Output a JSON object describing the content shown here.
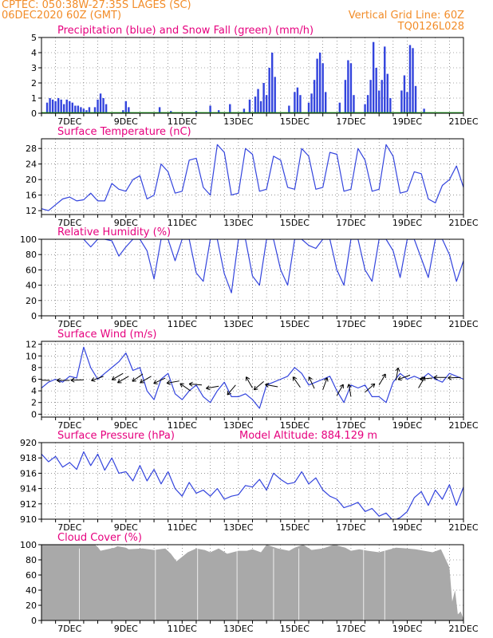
{
  "colors": {
    "header": "#f28c28",
    "title": "#e6007e",
    "series_blue": "#3344dd",
    "series_green": "#22aa22",
    "wind_arrow": "#000000",
    "cloud_fill": "#a9a9a9",
    "axis": "#000000"
  },
  "header": {
    "line1": "CPTEC:   050:38W-27:35S   LAGES (SC)",
    "line2": "06DEC2020 60Z (GMT)",
    "grid_info": "Vertical Grid Line: 60Z",
    "code": "TQ0126L028"
  },
  "x_ticks": [
    "7DEC",
    "9DEC",
    "11DEC",
    "13DEC",
    "15DEC",
    "17DEC",
    "19DEC",
    "21DEC"
  ],
  "chart_data": [
    {
      "id": "precip",
      "type": "bar",
      "title": "Precipitation (blue) and Snow Fall (green) (mm/h)",
      "ylim": [
        0,
        5
      ],
      "yticks": [
        0,
        1,
        2,
        3,
        4,
        5
      ],
      "x_range_days": [
        6,
        21
      ],
      "grid": "dotted",
      "series": [
        {
          "name": "Precipitation",
          "color": "#3344dd",
          "points": [
            [
              6.2,
              0.7
            ],
            [
              6.3,
              1.0
            ],
            [
              6.4,
              0.9
            ],
            [
              6.5,
              0.8
            ],
            [
              6.6,
              1.0
            ],
            [
              6.7,
              0.9
            ],
            [
              6.8,
              0.6
            ],
            [
              6.9,
              0.9
            ],
            [
              7.0,
              0.8
            ],
            [
              7.1,
              0.7
            ],
            [
              7.2,
              0.5
            ],
            [
              7.3,
              0.5
            ],
            [
              7.4,
              0.4
            ],
            [
              7.5,
              0.3
            ],
            [
              7.6,
              0.2
            ],
            [
              7.7,
              0.4
            ],
            [
              7.9,
              0.4
            ],
            [
              8.0,
              0.9
            ],
            [
              8.1,
              1.3
            ],
            [
              8.2,
              1.0
            ],
            [
              8.3,
              0.6
            ],
            [
              8.9,
              0.2
            ],
            [
              9.0,
              0.8
            ],
            [
              9.1,
              0.4
            ],
            [
              10.2,
              0.4
            ],
            [
              10.6,
              0.15
            ],
            [
              11.5,
              0.15
            ],
            [
              12.0,
              0.5
            ],
            [
              12.3,
              0.2
            ],
            [
              12.7,
              0.6
            ],
            [
              13.2,
              0.3
            ],
            [
              13.4,
              0.9
            ],
            [
              13.6,
              1.1
            ],
            [
              13.7,
              1.6
            ],
            [
              13.8,
              0.8
            ],
            [
              13.9,
              2.0
            ],
            [
              14.0,
              1.2
            ],
            [
              14.1,
              3.0
            ],
            [
              14.2,
              4.0
            ],
            [
              14.3,
              2.4
            ],
            [
              14.8,
              0.5
            ],
            [
              15.0,
              1.4
            ],
            [
              15.1,
              1.7
            ],
            [
              15.2,
              1.2
            ],
            [
              15.5,
              0.7
            ],
            [
              15.6,
              1.3
            ],
            [
              15.7,
              2.2
            ],
            [
              15.8,
              3.6
            ],
            [
              15.9,
              4.0
            ],
            [
              16.0,
              3.3
            ],
            [
              16.1,
              1.4
            ],
            [
              16.6,
              0.7
            ],
            [
              16.8,
              2.2
            ],
            [
              16.9,
              3.5
            ],
            [
              17.0,
              3.3
            ],
            [
              17.1,
              1.2
            ],
            [
              17.5,
              0.6
            ],
            [
              17.6,
              1.2
            ],
            [
              17.7,
              2.2
            ],
            [
              17.8,
              4.7
            ],
            [
              17.9,
              3.0
            ],
            [
              18.0,
              1.5
            ],
            [
              18.1,
              2.2
            ],
            [
              18.2,
              4.4
            ],
            [
              18.3,
              2.6
            ],
            [
              18.4,
              1.0
            ],
            [
              18.8,
              1.5
            ],
            [
              18.9,
              2.5
            ],
            [
              19.0,
              1.4
            ],
            [
              19.1,
              4.5
            ],
            [
              19.2,
              4.3
            ],
            [
              19.3,
              1.8
            ],
            [
              19.6,
              0.3
            ]
          ]
        },
        {
          "name": "Snow Fall",
          "color": "#22aa22",
          "points": []
        }
      ]
    },
    {
      "id": "temperature",
      "type": "line",
      "title": "Surface Temperature (nC)",
      "ylim": [
        11,
        30.5
      ],
      "yticks": [
        12,
        16,
        20,
        24,
        28
      ],
      "x": [
        6.0,
        6.25,
        6.5,
        6.75,
        7.0,
        7.25,
        7.5,
        7.75,
        8.0,
        8.25,
        8.5,
        8.75,
        9.0,
        9.25,
        9.5,
        9.75,
        10.0,
        10.25,
        10.5,
        10.75,
        11.0,
        11.25,
        11.5,
        11.75,
        12.0,
        12.25,
        12.5,
        12.75,
        13.0,
        13.25,
        13.5,
        13.75,
        14.0,
        14.25,
        14.5,
        14.75,
        15.0,
        15.25,
        15.5,
        15.75,
        16.0,
        16.25,
        16.5,
        16.75,
        17.0,
        17.25,
        17.5,
        17.75,
        18.0,
        18.25,
        18.5,
        18.75,
        19.0,
        19.25,
        19.5,
        19.75,
        20.0,
        20.25,
        20.5,
        20.75,
        21.0
      ],
      "values": [
        12.5,
        12,
        13.5,
        15,
        15.5,
        14.5,
        14.8,
        16.5,
        14.5,
        14.5,
        19,
        17.5,
        17,
        20,
        21,
        15,
        16,
        24,
        22,
        16.5,
        17,
        25,
        25.5,
        18,
        16,
        29,
        27,
        16,
        16.5,
        28,
        26.5,
        17,
        17.5,
        26,
        25,
        18,
        17.5,
        28,
        26,
        17.5,
        18,
        27,
        26.5,
        17,
        17.5,
        28,
        25,
        17,
        17.5,
        29,
        26,
        16.5,
        17,
        22,
        21.5,
        15,
        14,
        18.5,
        20,
        23.5,
        18
      ],
      "series_name": "",
      "color": "#3344dd",
      "grid": "dotted"
    },
    {
      "id": "humidity",
      "type": "line",
      "title": "Relative Humidity (%)",
      "ylim": [
        0,
        100
      ],
      "yticks": [
        0,
        20,
        40,
        60,
        80,
        100
      ],
      "x": [
        7.5,
        7.75,
        8.0,
        8.25,
        8.5,
        8.75,
        9.0,
        9.25,
        9.5,
        9.75,
        10.0,
        10.25,
        10.5,
        10.75,
        11.0,
        11.25,
        11.5,
        11.75,
        12.0,
        12.25,
        12.5,
        12.75,
        13.0,
        13.25,
        13.5,
        13.75,
        14.0,
        14.25,
        14.5,
        14.75,
        15.0,
        15.25,
        15.5,
        15.75,
        16.0,
        16.25,
        16.5,
        16.75,
        17.0,
        17.25,
        17.5,
        17.75,
        18.0,
        18.25,
        18.5,
        18.75,
        19.0,
        19.25,
        19.5,
        19.75,
        20.0,
        20.25,
        20.5,
        20.75,
        21.0
      ],
      "values": [
        100,
        90,
        100,
        100,
        98,
        78,
        90,
        100,
        100,
        85,
        48,
        100,
        100,
        72,
        100,
        100,
        56,
        45,
        100,
        100,
        55,
        30,
        100,
        100,
        52,
        40,
        100,
        100,
        60,
        40,
        100,
        100,
        92,
        88,
        100,
        100,
        60,
        40,
        100,
        100,
        60,
        45,
        100,
        100,
        85,
        50,
        100,
        100,
        75,
        50,
        100,
        100,
        80,
        45,
        72
      ],
      "series_name": "",
      "color": "#3344dd",
      "grid": "dotted"
    },
    {
      "id": "wind",
      "type": "line",
      "title": "Surface Wind (m/s)",
      "ylim": [
        -0.5,
        12.5
      ],
      "yticks": [
        0,
        2,
        4,
        6,
        8,
        10,
        12
      ],
      "x": [
        6.0,
        6.25,
        6.5,
        6.75,
        7.0,
        7.25,
        7.5,
        7.75,
        8.0,
        8.25,
        8.5,
        8.75,
        9.0,
        9.25,
        9.5,
        9.75,
        10.0,
        10.25,
        10.5,
        10.75,
        11.0,
        11.25,
        11.5,
        11.75,
        12.0,
        12.25,
        12.5,
        12.75,
        13.0,
        13.25,
        13.5,
        13.75,
        14.0,
        14.25,
        14.5,
        14.75,
        15.0,
        15.25,
        15.5,
        15.75,
        16.0,
        16.25,
        16.5,
        16.75,
        17.0,
        17.25,
        17.5,
        17.75,
        18.0,
        18.25,
        18.5,
        18.75,
        19.0,
        19.25,
        19.5,
        19.75,
        20.0,
        20.25,
        20.5,
        20.75,
        21.0
      ],
      "values": [
        4.5,
        5.5,
        6,
        5.5,
        6.5,
        6.2,
        11.5,
        8,
        6,
        7,
        8,
        9,
        10.5,
        7.5,
        8,
        4,
        2.5,
        6,
        7,
        3.5,
        2.5,
        4,
        5,
        3,
        2,
        4,
        5.5,
        3,
        3,
        3.5,
        2.5,
        1,
        5,
        5.5,
        6,
        6.5,
        8,
        7,
        5,
        5.5,
        6,
        6.5,
        4,
        2,
        5,
        4.5,
        5,
        3,
        3,
        2,
        5.5,
        7,
        6,
        6.5,
        6,
        7,
        6,
        5.5,
        7,
        6.5,
        6
      ],
      "series_name": "",
      "color": "#3344dd",
      "grid": "dotted",
      "vectors": [
        [
          6.3,
          5.8,
          182
        ],
        [
          7.0,
          5.8,
          180
        ],
        [
          7.5,
          5.9,
          178
        ],
        [
          8.2,
          6.5,
          160
        ],
        [
          8.9,
          7.0,
          150
        ],
        [
          9.1,
          6.5,
          150
        ],
        [
          9.6,
          6.9,
          145
        ],
        [
          9.9,
          6.5,
          150
        ],
        [
          10.4,
          6.2,
          155
        ],
        [
          10.9,
          5.7,
          170
        ],
        [
          11.3,
          4.0,
          215
        ],
        [
          11.7,
          5.0,
          185
        ],
        [
          12.3,
          4.8,
          170
        ],
        [
          12.9,
          5.0,
          130
        ],
        [
          13.5,
          4.5,
          240
        ],
        [
          13.9,
          5.6,
          140
        ],
        [
          14.4,
          4.7,
          190
        ],
        [
          15.2,
          4.6,
          235
        ],
        [
          15.7,
          4.4,
          245
        ],
        [
          16.0,
          4.2,
          290
        ],
        [
          16.5,
          3.2,
          300
        ],
        [
          17.0,
          3.0,
          260
        ],
        [
          17.5,
          3.8,
          320
        ],
        [
          18.0,
          5.0,
          300
        ],
        [
          18.6,
          5.8,
          280
        ],
        [
          19.1,
          6.7,
          160
        ],
        [
          19.4,
          4.5,
          300
        ],
        [
          19.9,
          6.2,
          175
        ],
        [
          20.4,
          6.3,
          180
        ],
        [
          20.9,
          6.3,
          178
        ]
      ]
    },
    {
      "id": "pressure",
      "type": "line",
      "title": "Surface Pressure (hPa)",
      "annotation": "Model Altitude: 884.129  m",
      "ylim": [
        910,
        920
      ],
      "yticks": [
        910,
        912,
        914,
        916,
        918,
        920
      ],
      "x": [
        6.0,
        6.25,
        6.5,
        6.75,
        7.0,
        7.25,
        7.5,
        7.75,
        8.0,
        8.25,
        8.5,
        8.75,
        9.0,
        9.25,
        9.5,
        9.75,
        10.0,
        10.25,
        10.5,
        10.75,
        11.0,
        11.25,
        11.5,
        11.75,
        12.0,
        12.25,
        12.5,
        12.75,
        13.0,
        13.25,
        13.5,
        13.75,
        14.0,
        14.25,
        14.5,
        14.75,
        15.0,
        15.25,
        15.5,
        15.75,
        16.0,
        16.25,
        16.5,
        16.75,
        17.0,
        17.25,
        17.5,
        17.75,
        18.0,
        18.25,
        18.5,
        18.75,
        19.0,
        19.25,
        19.5,
        19.75,
        20.0,
        20.25,
        20.5,
        20.75,
        21.0
      ],
      "values": [
        918.5,
        917.5,
        918.2,
        916.8,
        917.4,
        916.5,
        918.8,
        917.0,
        918.5,
        916.4,
        918.0,
        916.0,
        916.2,
        915.0,
        917.0,
        915.0,
        916.5,
        914.6,
        916.2,
        914.0,
        913.0,
        914.8,
        913.4,
        913.8,
        913.0,
        914.0,
        912.6,
        913.0,
        913.2,
        914.4,
        914.2,
        915.2,
        913.8,
        916.0,
        915.2,
        914.6,
        914.8,
        916.2,
        914.6,
        915.4,
        913.8,
        913.0,
        912.6,
        911.5,
        911.8,
        912.2,
        911.0,
        911.4,
        910.4,
        910.8,
        909.8,
        910.2,
        911.0,
        912.8,
        913.6,
        911.8,
        913.8,
        912.6,
        914.5,
        911.8,
        914.2
      ],
      "series_name": "",
      "color": "#3344dd",
      "grid": "dotted"
    },
    {
      "id": "cloud",
      "type": "area",
      "title": "Cloud Cover (%)",
      "ylim": [
        0,
        100
      ],
      "yticks": [
        0,
        20,
        40,
        60,
        80,
        100
      ],
      "x": [
        6.0,
        7.9,
        8.0,
        8.1,
        8.6,
        8.7,
        9.0,
        9.1,
        9.6,
        10.0,
        10.4,
        10.6,
        10.8,
        11.2,
        11.5,
        11.8,
        12.0,
        12.3,
        12.6,
        13.0,
        13.3,
        13.5,
        13.8,
        14.0,
        14.4,
        14.8,
        15.0,
        15.3,
        15.6,
        16.0,
        16.4,
        16.8,
        17.0,
        17.3,
        17.6,
        18.0,
        18.3,
        18.6,
        19.0,
        19.3,
        19.6,
        19.9,
        20.2,
        20.5,
        20.6,
        20.7,
        20.8,
        20.9,
        21.0
      ],
      "values": [
        100,
        100,
        97,
        92,
        96,
        98,
        96,
        94,
        95,
        93,
        95,
        88,
        78,
        90,
        95,
        93,
        90,
        95,
        88,
        92,
        92,
        94,
        90,
        100,
        95,
        92,
        96,
        100,
        93,
        95,
        100,
        96,
        92,
        94,
        92,
        90,
        93,
        96,
        95,
        94,
        92,
        90,
        94,
        70,
        25,
        40,
        8,
        12,
        2
      ],
      "series_name": "",
      "color": "#a9a9a9",
      "grid": "dotted"
    }
  ]
}
